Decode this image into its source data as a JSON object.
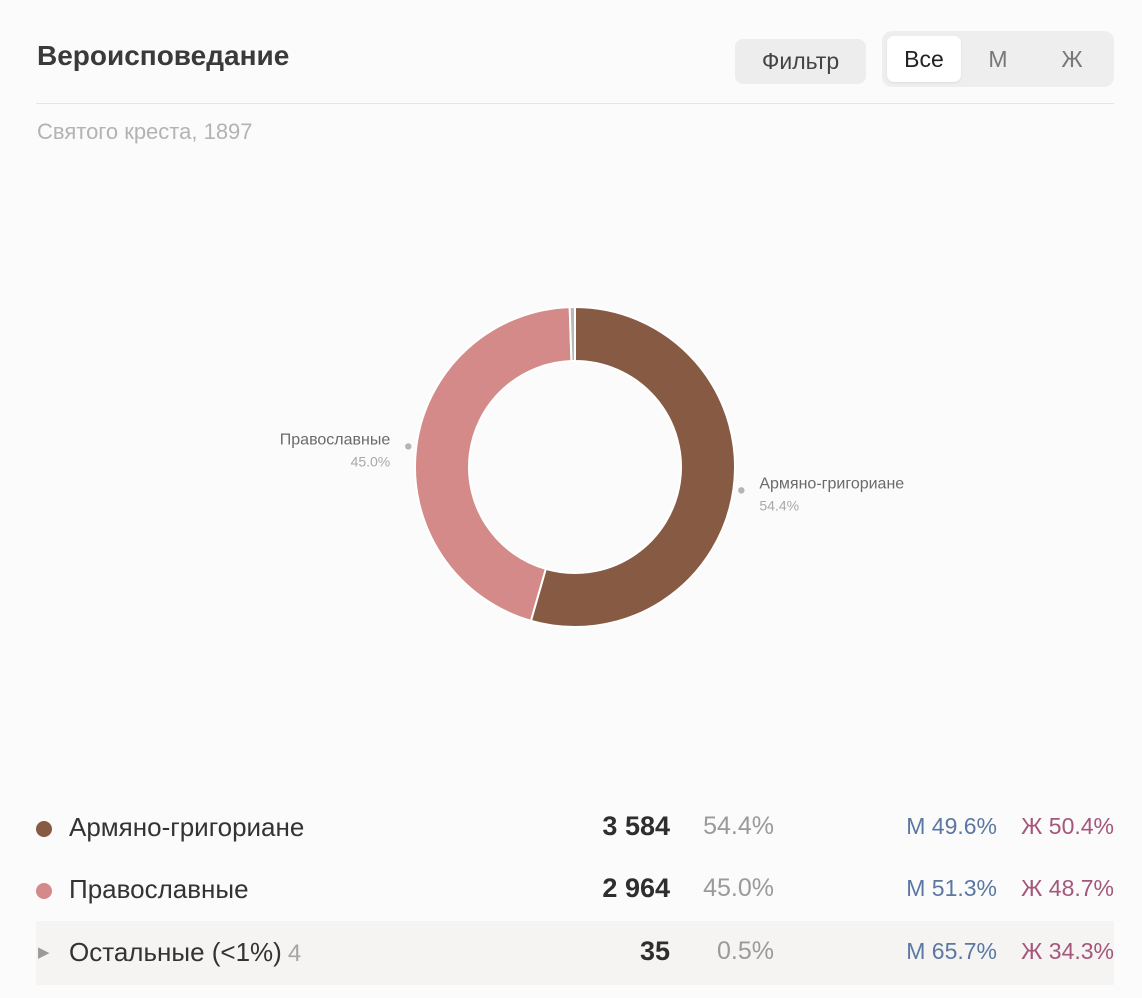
{
  "header": {
    "title": "Вероисповедание",
    "filter_label": "Фильтр",
    "segments": [
      {
        "label": "Все",
        "active": true
      },
      {
        "label": "М",
        "active": false
      },
      {
        "label": "Ж",
        "active": false
      }
    ]
  },
  "subtitle": "Святого креста, 1897",
  "chart_data": {
    "type": "pie",
    "donut": true,
    "slices": [
      {
        "label": "Армяно-григориане",
        "value": 3584,
        "percent": "54.4%",
        "color": "#875a43"
      },
      {
        "label": "Православные",
        "value": 2964,
        "percent": "45.0%",
        "color": "#d48a89"
      },
      {
        "label": "Остальные (<1%)",
        "value": 35,
        "percent": "0.5%",
        "color": "#b8b8b8"
      }
    ],
    "annotated": [
      0,
      1
    ]
  },
  "rows": [
    {
      "name": "Армяно-григориане",
      "count_extra": "",
      "value": "3 584",
      "pct": "54.4%",
      "m": "М 49.6%",
      "f": "Ж 50.4%",
      "color": "#875a43"
    },
    {
      "name": "Православные",
      "count_extra": "",
      "value": "2 964",
      "pct": "45.0%",
      "m": "М 51.3%",
      "f": "Ж 48.7%",
      "color": "#d48a89"
    },
    {
      "name": "Остальные (<1%)",
      "count_extra": "4",
      "value": "35",
      "pct": "0.5%",
      "m": "М 65.7%",
      "f": "Ж 34.3%",
      "color": ""
    }
  ],
  "icons": {
    "expand": "▶"
  }
}
